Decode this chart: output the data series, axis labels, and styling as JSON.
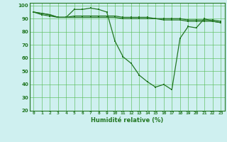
{
  "x": [
    0,
    1,
    2,
    3,
    4,
    5,
    6,
    7,
    8,
    9,
    10,
    11,
    12,
    13,
    14,
    15,
    16,
    17,
    18,
    19,
    20,
    21,
    22,
    23
  ],
  "line1": [
    95,
    94,
    93,
    91,
    91,
    97,
    97,
    98,
    97,
    95,
    73,
    61,
    56,
    47,
    42,
    38,
    40,
    36,
    75,
    84,
    83,
    90,
    88,
    87
  ],
  "line2": [
    95,
    94,
    93,
    91,
    91,
    92,
    92,
    92,
    92,
    92,
    92,
    91,
    91,
    91,
    91,
    90,
    90,
    90,
    90,
    89,
    89,
    89,
    89,
    88
  ],
  "line3": [
    95,
    93,
    92,
    91,
    91,
    91,
    91,
    91,
    91,
    91,
    91,
    90,
    90,
    90,
    90,
    90,
    89,
    89,
    89,
    88,
    88,
    88,
    88,
    87
  ],
  "bg_color": "#cff0f0",
  "grid_color": "#55bb55",
  "line_color": "#227722",
  "xlabel": "Humidité relative (%)",
  "ylim": [
    20,
    102
  ],
  "yticks": [
    20,
    30,
    40,
    50,
    60,
    70,
    80,
    90,
    100
  ],
  "xticks": [
    0,
    1,
    2,
    3,
    4,
    5,
    6,
    7,
    8,
    9,
    10,
    11,
    12,
    13,
    14,
    15,
    16,
    17,
    18,
    19,
    20,
    21,
    22,
    23
  ]
}
